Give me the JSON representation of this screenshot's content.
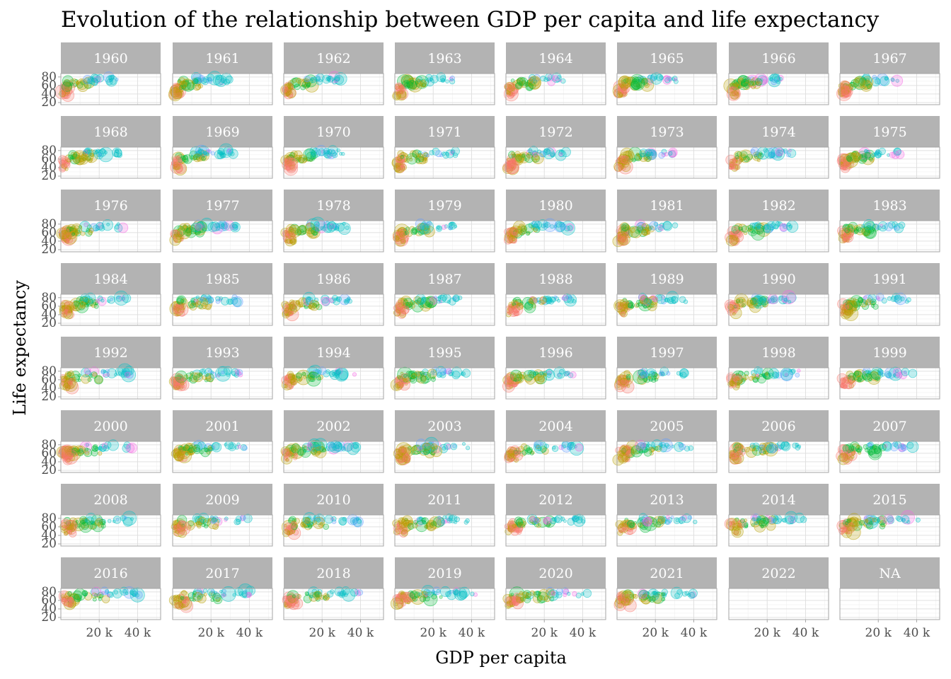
{
  "chart_data": {
    "type": "scatter",
    "title": "Evolution of the relationship between GDP per capita and life expectancy",
    "xlabel": "GDP per capita",
    "ylabel": "Life expectancy",
    "facet_by": "year",
    "facets": [
      "1960",
      "1961",
      "1962",
      "1963",
      "1964",
      "1965",
      "1966",
      "1967",
      "1968",
      "1969",
      "1970",
      "1971",
      "1972",
      "1973",
      "1974",
      "1975",
      "1976",
      "1977",
      "1978",
      "1979",
      "1980",
      "1981",
      "1982",
      "1983",
      "1984",
      "1985",
      "1986",
      "1987",
      "1988",
      "1989",
      "1990",
      "1991",
      "1992",
      "1993",
      "1994",
      "1995",
      "1996",
      "1997",
      "1998",
      "1999",
      "2000",
      "2001",
      "2002",
      "2003",
      "2004",
      "2005",
      "2006",
      "2007",
      "2008",
      "2009",
      "2010",
      "2011",
      "2012",
      "2013",
      "2014",
      "2015",
      "2016",
      "2017",
      "2018",
      "2019",
      "2020",
      "2021",
      "2022",
      "NA"
    ],
    "facet_columns": 8,
    "xlim": [
      0,
      52000
    ],
    "ylim": [
      15,
      88
    ],
    "x_ticks": [
      20000,
      40000
    ],
    "x_tick_labels": [
      "20 k",
      "40 k"
    ],
    "y_ticks": [
      20,
      40,
      60,
      80
    ],
    "y_tick_labels": [
      "20",
      "40",
      "60",
      "80"
    ],
    "grid": true,
    "point_opacity": 0.25,
    "point_size_encoding": "population",
    "color_groups": [
      {
        "color": "#F8766D"
      },
      {
        "color": "#B79F00"
      },
      {
        "color": "#00BA38"
      },
      {
        "color": "#00BFC4"
      },
      {
        "color": "#619CFF"
      },
      {
        "color": "#F564E3"
      }
    ],
    "cluster_pattern": {
      "low_income": {
        "x": [
          600,
          4000
        ],
        "y": [
          35,
          60
        ]
      },
      "mid_income": {
        "x": [
          3000,
          15000
        ],
        "y": [
          55,
          72
        ]
      },
      "high_income": {
        "x": [
          12000,
          30000
        ],
        "y": [
          68,
          80
        ]
      }
    }
  }
}
